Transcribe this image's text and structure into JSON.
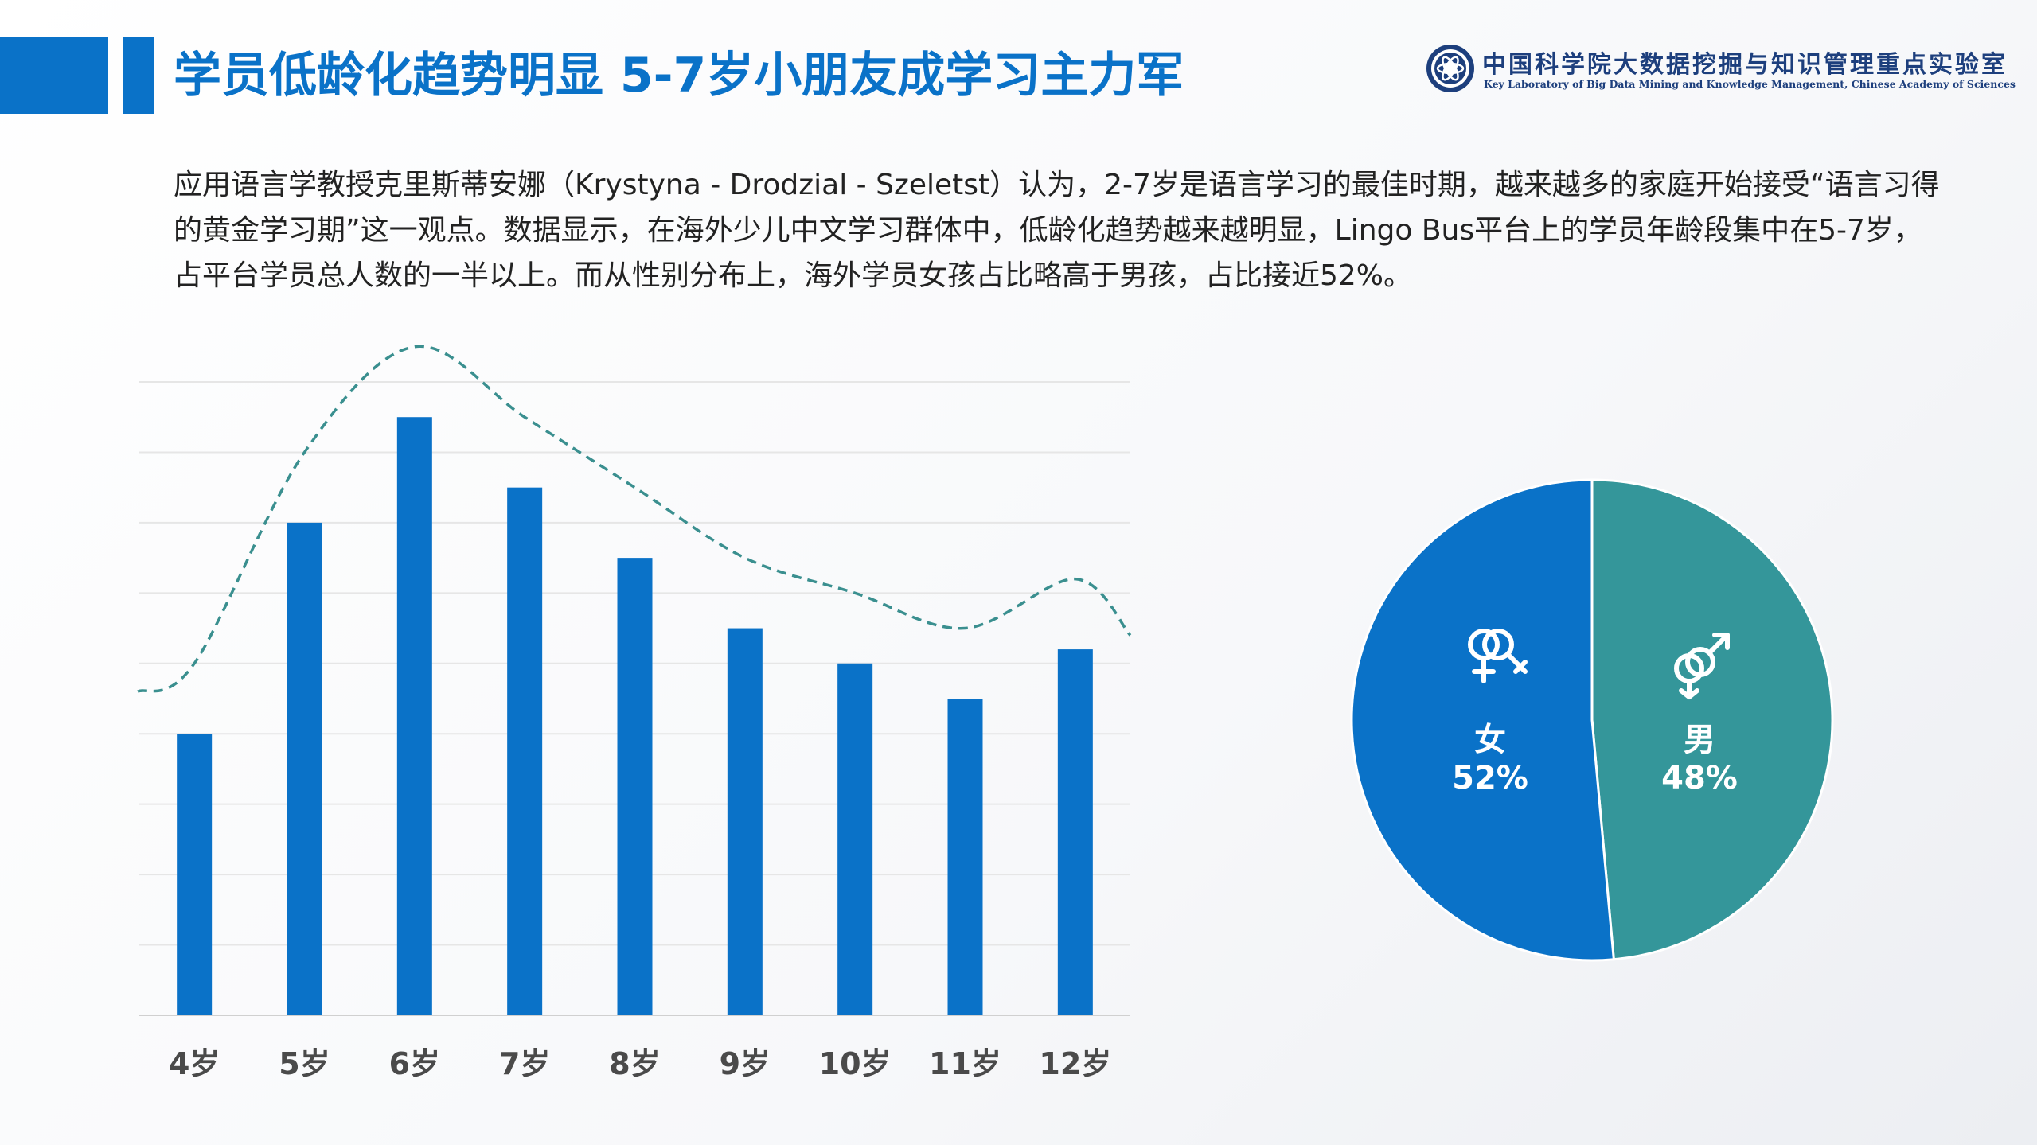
{
  "header": {
    "title": "学员低龄化趋势明显 5-7岁小朋友成学习主力军"
  },
  "logo": {
    "cn_name": "中国科学院大数据挖掘与知识管理重点实验室",
    "en_name": "Key Laboratory of Big Data Mining and Knowledge Management, Chinese Academy of Sciences"
  },
  "paragraph": "应用语言学教授克里斯蒂安娜（Krystyna - Drodzial - Szeletst）认为，2-7岁是语言学习的最佳时期，越来越多的家庭开始接受“语言习得的黄金学习期”这一观点。数据显示，在海外少儿中文学习群体中，低龄化趋势越来越明显，Lingo Bus平台上的学员年龄段集中在5-7岁，占平台学员总人数的一半以上。而从性别分布上，海外学员女孩占比略高于男孩，占比接近52%。",
  "chart_data": [
    {
      "type": "bar",
      "categories": [
        "4岁",
        "5岁",
        "6岁",
        "7岁",
        "8岁",
        "9岁",
        "10岁",
        "11岁",
        "12岁"
      ],
      "values": [
        40,
        70,
        85,
        75,
        65,
        55,
        50,
        45,
        52
      ],
      "ylim": [
        0,
        90
      ],
      "grid": true,
      "bar_color": "#0a72c8",
      "trend_color": "#3a8f8f",
      "trend_line": "dashed"
    },
    {
      "type": "pie",
      "slices": [
        {
          "label": "女",
          "value": 52,
          "display": "52%",
          "color": "#0a72c8",
          "icon": "female-symbol-icon"
        },
        {
          "label": "男",
          "value": 48,
          "display": "48%",
          "color": "#34969a",
          "icon": "male-symbol-icon"
        }
      ]
    }
  ]
}
